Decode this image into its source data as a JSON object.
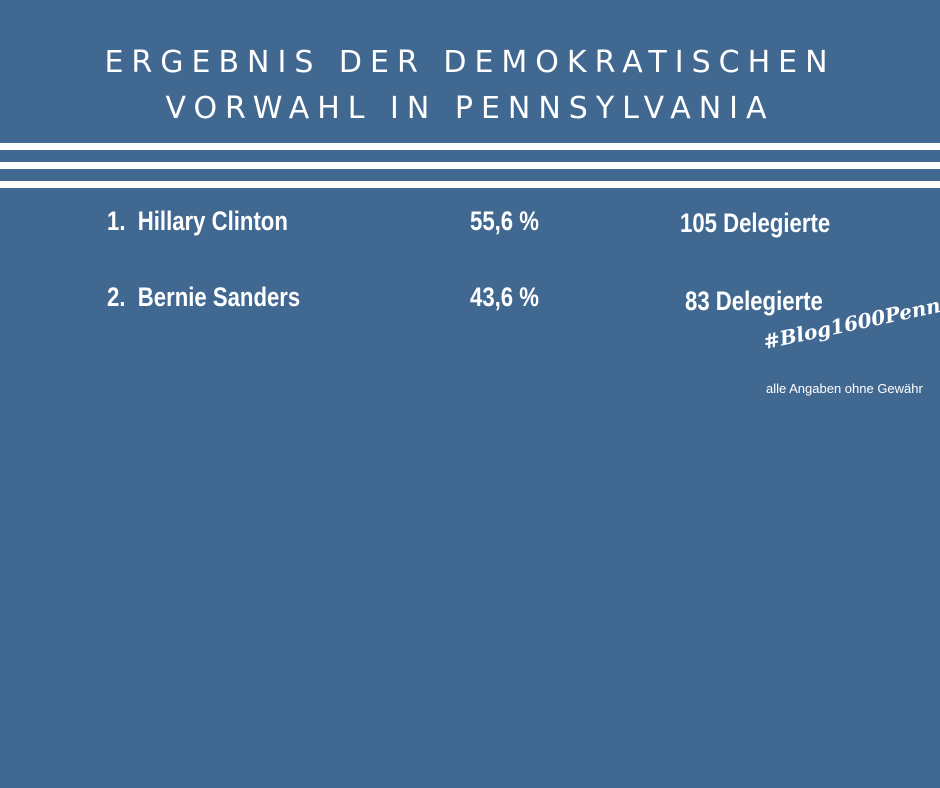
{
  "title": {
    "line1": "ERGEBNIS DER DEMOKRATISCHEN",
    "line2": "VORWAHL IN PENNSYLVANIA"
  },
  "results": [
    {
      "rank": "1.",
      "name": "Hillary Clinton",
      "percent": "55,6 %",
      "delegates": "105 Delegierte"
    },
    {
      "rank": "2.",
      "name": "Bernie Sanders",
      "percent": "43,6 %",
      "delegates": "83 Delegierte"
    }
  ],
  "hashtag": "#Blog1600Penn",
  "disclaimer": "alle Angaben ohne Gewähr",
  "colors": {
    "background": "#416891",
    "text": "#ffffff"
  }
}
